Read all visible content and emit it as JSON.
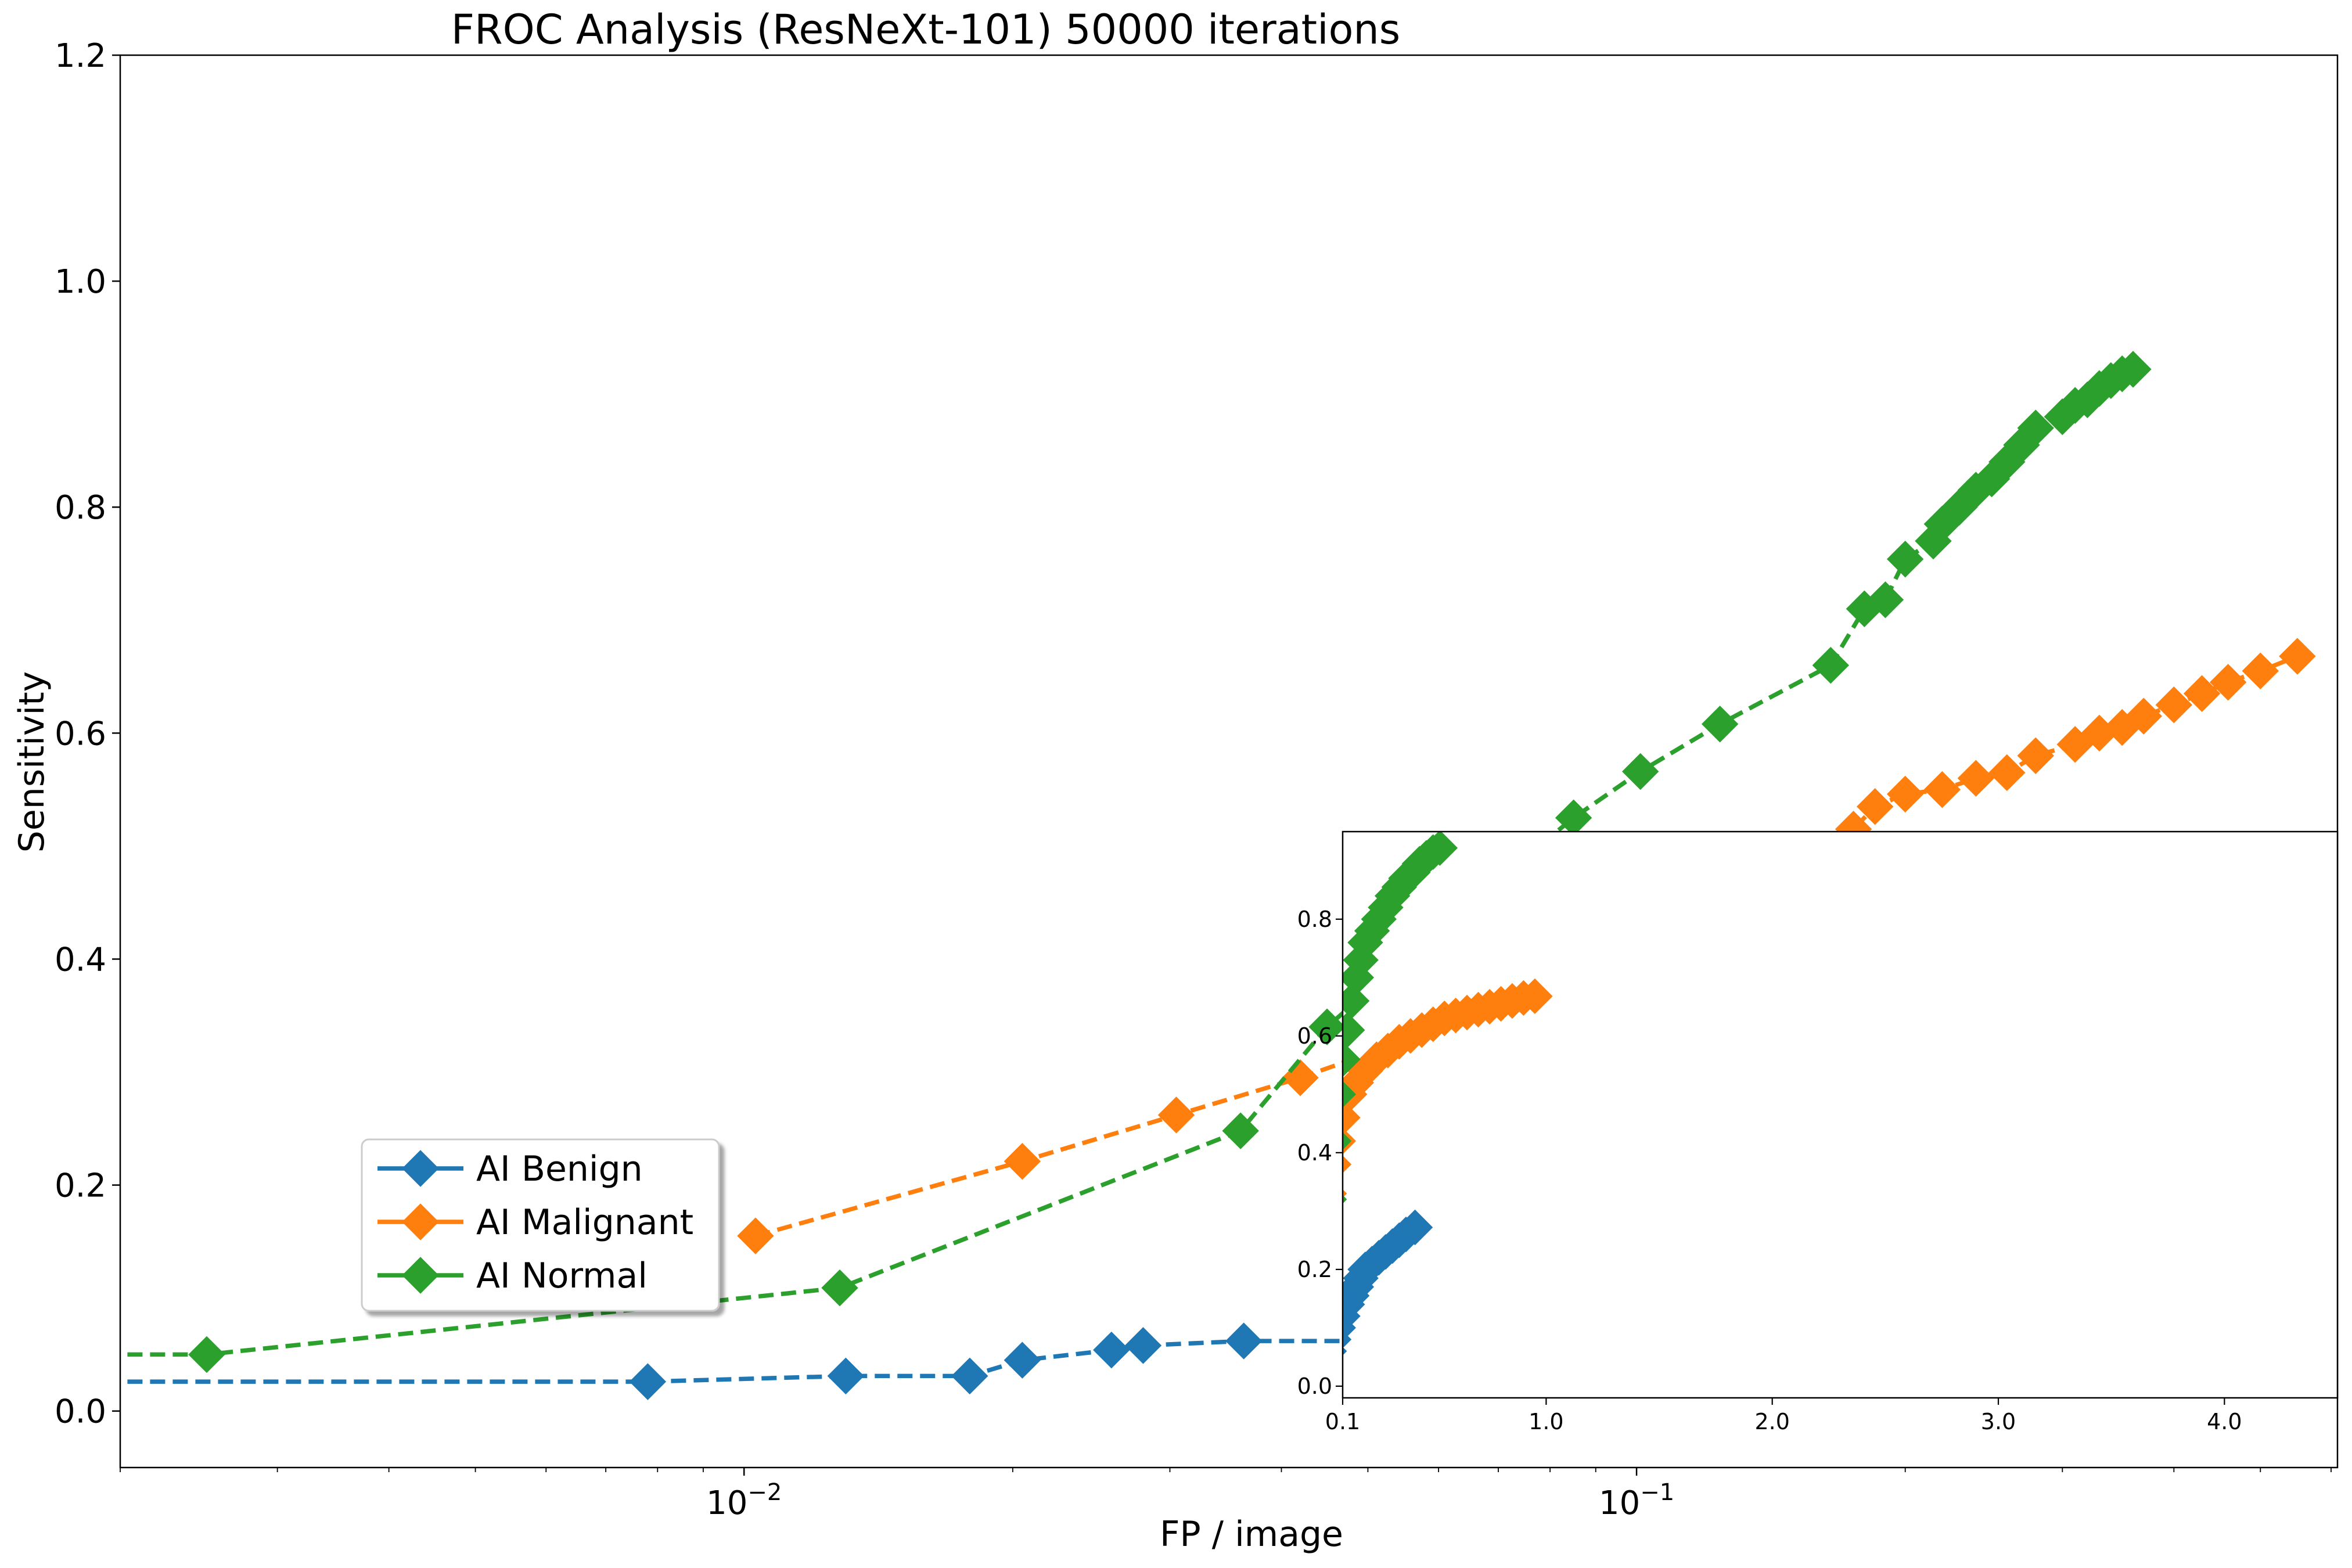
{
  "chart_data": {
    "type": "line",
    "title": "FROC Analysis (ResNeXt-101) 50000 iterations",
    "xlabel": "FP / image",
    "ylabel": "Sensitivity",
    "xscale": "log",
    "xlim": [
      0.002,
      0.61
    ],
    "ylim": [
      -0.05,
      1.2
    ],
    "x_major_ticks": [
      {
        "value": 0.01,
        "base": "10",
        "exp": "−2"
      },
      {
        "value": 0.1,
        "base": "10",
        "exp": "−1"
      }
    ],
    "y_ticks": [
      0.0,
      0.2,
      0.4,
      0.6,
      0.8,
      1.0,
      1.2
    ],
    "y_tick_labels": [
      "0.0",
      "0.2",
      "0.4",
      "0.6",
      "0.8",
      "1.0",
      "1.2"
    ],
    "grid": false,
    "legend": {
      "placement": "lower-left",
      "entries": [
        "AI Benign",
        "AI Malignant",
        "AI Normal"
      ]
    },
    "series": [
      {
        "name": "AI Benign",
        "color": "#1f77b4",
        "x": [
          0.0008,
          0.0078,
          0.013,
          0.0179,
          0.0205,
          0.0258,
          0.028,
          0.0363,
          0.05,
          0.052,
          0.0537,
          0.056,
          0.0585,
          0.06,
          0.0625,
          0.065,
          0.0675,
          0.07,
          0.073,
          0.076,
          0.08,
          0.083,
          0.087,
          0.09
        ],
        "y": [
          0.026,
          0.026,
          0.031,
          0.031,
          0.045,
          0.054,
          0.058,
          0.062,
          0.062,
          0.075,
          0.09,
          0.1,
          0.115,
          0.13,
          0.145,
          0.155,
          0.17,
          0.18,
          0.195,
          0.205,
          0.22,
          0.235,
          0.25,
          0.265
        ]
      },
      {
        "name": "AI Malignant",
        "color": "#ff7f0e",
        "x": [
          0.0103,
          0.0205,
          0.0305,
          0.042,
          0.05,
          0.06,
          0.075,
          0.1,
          0.12,
          0.15,
          0.175,
          0.185,
          0.2,
          0.22,
          0.24,
          0.26,
          0.28,
          0.31,
          0.33,
          0.35,
          0.37,
          0.4,
          0.43,
          0.46,
          0.5,
          0.55
        ],
        "y": [
          0.155,
          0.221,
          0.262,
          0.295,
          0.316,
          0.34,
          0.37,
          0.41,
          0.44,
          0.48,
          0.515,
          0.535,
          0.546,
          0.55,
          0.56,
          0.565,
          0.58,
          0.59,
          0.6,
          0.605,
          0.615,
          0.625,
          0.635,
          0.645,
          0.655,
          0.668
        ]
      },
      {
        "name": "AI Normal",
        "color": "#2ca02c",
        "x": [
          0.0008,
          0.0025,
          0.0128,
          0.036,
          0.045,
          0.055,
          0.065,
          0.075,
          0.085,
          0.101,
          0.124,
          0.165,
          0.18,
          0.19,
          0.2,
          0.215,
          0.22,
          0.23,
          0.24,
          0.25,
          0.26,
          0.27,
          0.28,
          0.3,
          0.31,
          0.32,
          0.33,
          0.34,
          0.35,
          0.36
        ],
        "y": [
          0.05,
          0.05,
          0.109,
          0.248,
          0.34,
          0.4,
          0.45,
          0.49,
          0.525,
          0.566,
          0.608,
          0.66,
          0.71,
          0.718,
          0.754,
          0.77,
          0.785,
          0.8,
          0.815,
          0.825,
          0.84,
          0.855,
          0.87,
          0.88,
          0.89,
          0.895,
          0.905,
          0.912,
          0.918,
          0.922
        ]
      }
    ],
    "inset": {
      "type": "line",
      "xscale": "linear",
      "xlim": [
        0.1,
        4.5
      ],
      "ylim": [
        -0.02,
        0.95
      ],
      "x_ticks": [
        0.1,
        1.0,
        2.0,
        3.0,
        4.0
      ],
      "x_tick_labels": [
        "0.1",
        "1.0",
        "2.0",
        "3.0",
        "4.0"
      ],
      "y_ticks": [
        0.0,
        0.2,
        0.4,
        0.6,
        0.8
      ],
      "y_tick_labels": [
        "0.0",
        "0.2",
        "0.4",
        "0.6",
        "0.8"
      ],
      "series": [
        {
          "name": "AI Benign",
          "color": "#1f77b4",
          "x": [
            0.0,
            0.02,
            0.04,
            0.06,
            0.08,
            0.1,
            0.12,
            0.14,
            0.16,
            0.18,
            0.2,
            0.23,
            0.26,
            0.29,
            0.32,
            0.35,
            0.38,
            0.42
          ],
          "y": [
            0.026,
            0.04,
            0.06,
            0.08,
            0.1,
            0.12,
            0.14,
            0.155,
            0.17,
            0.185,
            0.2,
            0.21,
            0.22,
            0.23,
            0.24,
            0.25,
            0.26,
            0.272
          ]
        },
        {
          "name": "AI Malignant",
          "color": "#ff7f0e",
          "x": [
            0.0,
            0.02,
            0.04,
            0.06,
            0.08,
            0.1,
            0.13,
            0.16,
            0.2,
            0.25,
            0.3,
            0.35,
            0.4,
            0.45,
            0.5,
            0.55,
            0.6,
            0.65,
            0.7,
            0.75,
            0.8,
            0.85,
            0.9,
            0.95
          ],
          "y": [
            0.16,
            0.25,
            0.33,
            0.38,
            0.42,
            0.46,
            0.5,
            0.52,
            0.54,
            0.56,
            0.575,
            0.59,
            0.6,
            0.61,
            0.62,
            0.63,
            0.635,
            0.64,
            0.645,
            0.65,
            0.655,
            0.66,
            0.665,
            0.668
          ]
        },
        {
          "name": "AI Normal",
          "color": "#2ca02c",
          "x": [
            0.0,
            0.02,
            0.04,
            0.06,
            0.08,
            0.1,
            0.12,
            0.14,
            0.16,
            0.18,
            0.2,
            0.23,
            0.26,
            0.29,
            0.32,
            0.35,
            0.38,
            0.41,
            0.44,
            0.47,
            0.5,
            0.53
          ],
          "y": [
            0.05,
            0.2,
            0.32,
            0.42,
            0.5,
            0.56,
            0.61,
            0.66,
            0.7,
            0.73,
            0.76,
            0.78,
            0.8,
            0.82,
            0.84,
            0.855,
            0.87,
            0.88,
            0.895,
            0.905,
            0.915,
            0.922
          ]
        }
      ]
    }
  }
}
